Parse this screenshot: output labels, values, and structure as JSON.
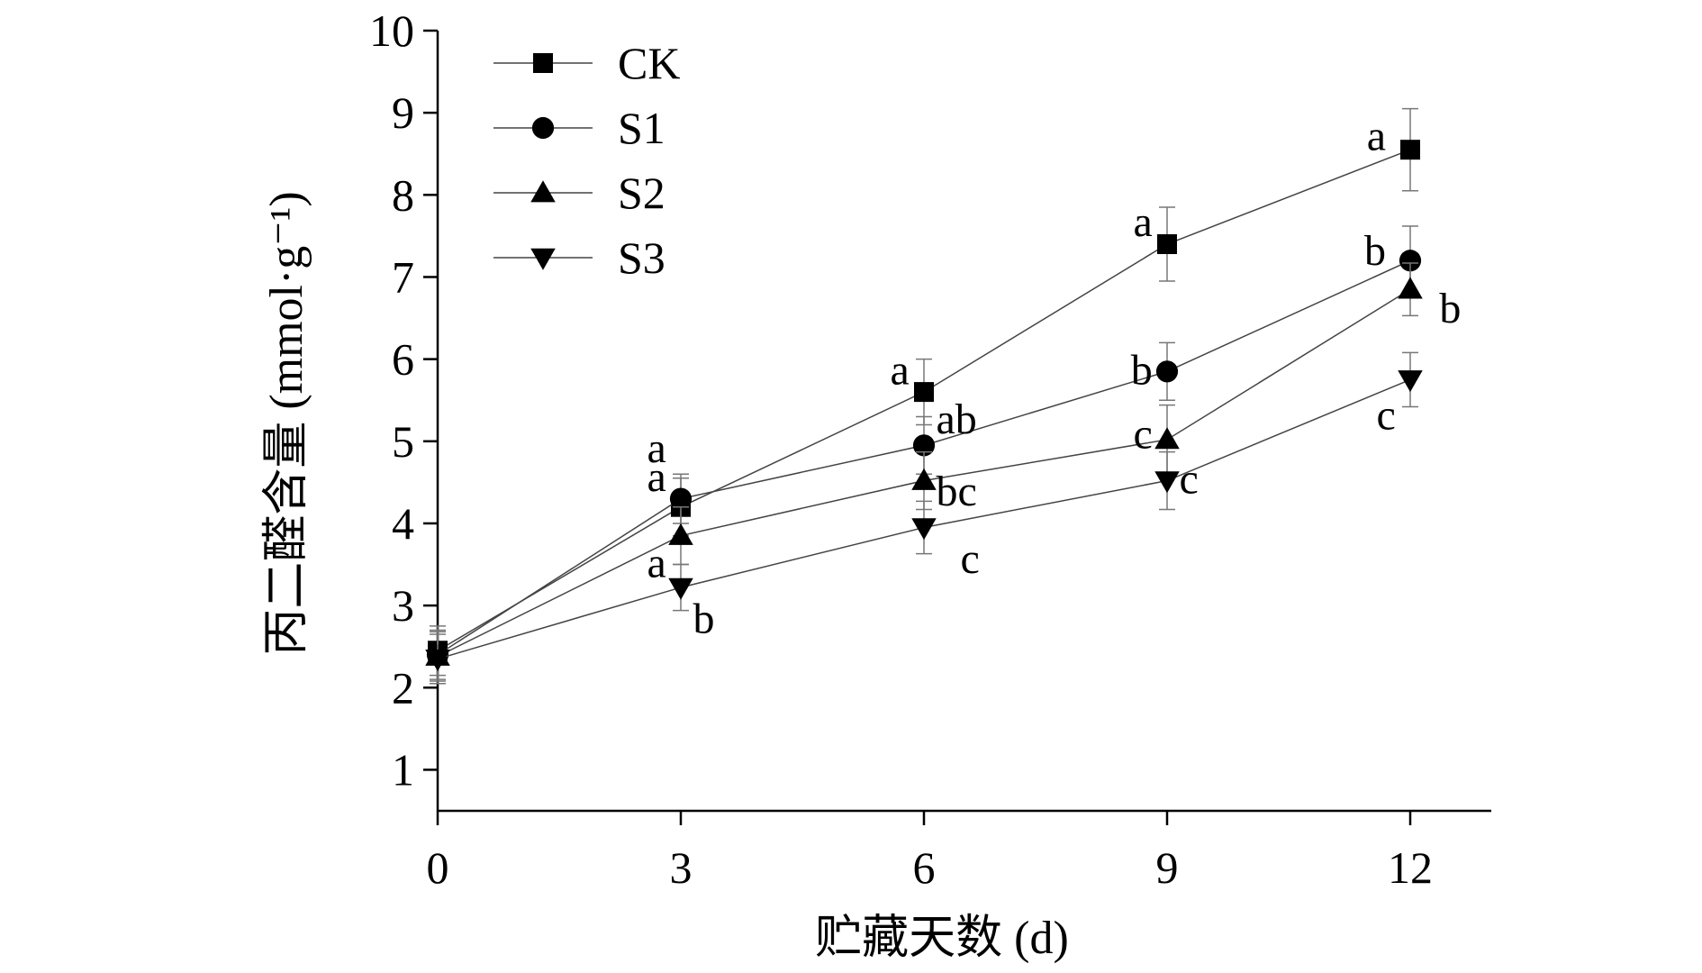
{
  "chart_data": {
    "type": "line",
    "xlabel": "贮藏天数 (d)",
    "ylabel": "丙二醛含量 (mmol·g⁻¹)",
    "x": [
      0,
      3,
      6,
      9,
      12
    ],
    "xticks": [
      "0",
      "3",
      "6",
      "9",
      "12"
    ],
    "yticks": [
      "1",
      "2",
      "3",
      "4",
      "5",
      "6",
      "7",
      "8",
      "9",
      "10"
    ],
    "xlim": [
      0,
      13
    ],
    "ylim": [
      0.5,
      10
    ],
    "grid": false,
    "legend": "top-left",
    "series": [
      {
        "name": "CK",
        "marker": "square",
        "values": [
          2.45,
          4.2,
          5.6,
          7.4,
          8.55
        ],
        "errors": [
          0.3,
          0.35,
          0.4,
          0.45,
          0.5
        ],
        "letters": [
          "",
          "a",
          "a",
          "a",
          "a"
        ]
      },
      {
        "name": "S1",
        "marker": "circle",
        "values": [
          2.4,
          4.3,
          4.95,
          5.85,
          7.2
        ],
        "errors": [
          0.3,
          0.3,
          0.35,
          0.35,
          0.42
        ],
        "letters": [
          "",
          "a",
          "ab",
          "b",
          "b"
        ]
      },
      {
        "name": "S2",
        "marker": "triangle-up",
        "values": [
          2.38,
          3.85,
          4.52,
          5.02,
          6.85
        ],
        "errors": [
          0.3,
          0.35,
          0.35,
          0.42,
          0.32
        ],
        "letters": [
          "",
          "a",
          "bc",
          "c",
          "b"
        ]
      },
      {
        "name": "S3",
        "marker": "triangle-down",
        "values": [
          2.35,
          3.22,
          3.95,
          4.52,
          5.75
        ],
        "errors": [
          0.3,
          0.28,
          0.32,
          0.35,
          0.33
        ],
        "letters": [
          "",
          "b",
          "c",
          "c",
          "c"
        ]
      }
    ]
  }
}
